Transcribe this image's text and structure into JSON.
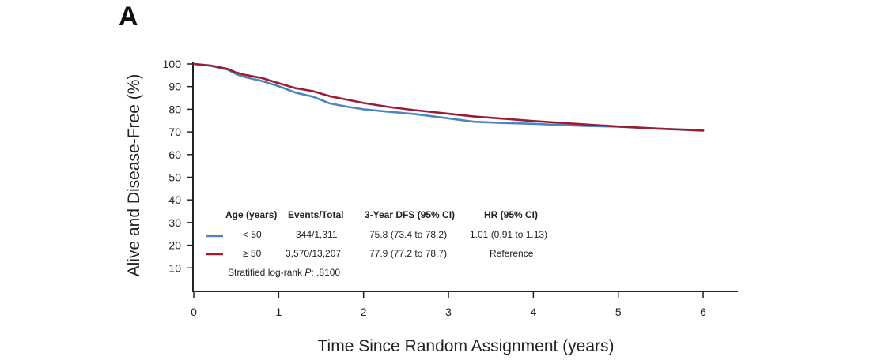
{
  "panel_label": "A",
  "chart_data": {
    "type": "line",
    "title": "",
    "xlabel": "Time Since Random Assignment (years)",
    "ylabel": "Alive and Disease-Free (%)",
    "xlim": [
      0,
      6.4
    ],
    "ylim": [
      0,
      100
    ],
    "x_ticks": [
      0,
      1,
      2,
      3,
      4,
      5,
      6
    ],
    "y_ticks": [
      10,
      20,
      30,
      40,
      50,
      60,
      70,
      80,
      90,
      100
    ],
    "grid": false,
    "series": [
      {
        "name": "< 50",
        "color": "#4a86c0",
        "x": [
          0,
          0.2,
          0.4,
          0.5,
          0.6,
          0.8,
          1.0,
          1.2,
          1.4,
          1.6,
          1.8,
          2.0,
          2.3,
          2.6,
          3.0,
          3.3,
          3.6,
          4.0,
          4.5,
          5.0,
          5.5,
          6.0
        ],
        "y": [
          100,
          99.2,
          97.5,
          95.5,
          94.2,
          92.5,
          90.2,
          87.3,
          85.6,
          82.6,
          81.2,
          80.0,
          78.9,
          77.9,
          76.0,
          74.5,
          74.0,
          73.6,
          72.8,
          72.3,
          71.4,
          70.8
        ]
      },
      {
        "name": "≥ 50",
        "color": "#9c1c33",
        "x": [
          0,
          0.2,
          0.4,
          0.5,
          0.6,
          0.8,
          1.0,
          1.2,
          1.4,
          1.6,
          1.8,
          2.0,
          2.3,
          2.6,
          3.0,
          3.3,
          3.6,
          4.0,
          4.5,
          5.0,
          5.5,
          6.0
        ],
        "y": [
          100,
          99.3,
          97.8,
          96.2,
          95.2,
          93.8,
          91.5,
          89.3,
          88.0,
          85.8,
          84.3,
          82.8,
          81.0,
          79.6,
          78.0,
          76.8,
          76.0,
          74.8,
          73.6,
          72.4,
          71.4,
          70.6
        ]
      }
    ],
    "legend": {
      "placement": "bottom-left",
      "headers": [
        "Age (years)",
        "Events/Total",
        "3-Year DFS (95% CI)",
        "HR (95% CI)"
      ],
      "rows": [
        {
          "age": "< 50",
          "events": "344/1,311",
          "dfs": "75.8 (73.4 to 78.2)",
          "hr": "1.01 (0.91 to 1.13)"
        },
        {
          "age": "≥ 50",
          "events": "3,570/13,207",
          "dfs": "77.9 (77.2 to 78.7)",
          "hr": "Reference"
        }
      ],
      "footnote_prefix": "Stratified log-rank ",
      "footnote_p": "P",
      "footnote_value": ": .8100"
    }
  }
}
